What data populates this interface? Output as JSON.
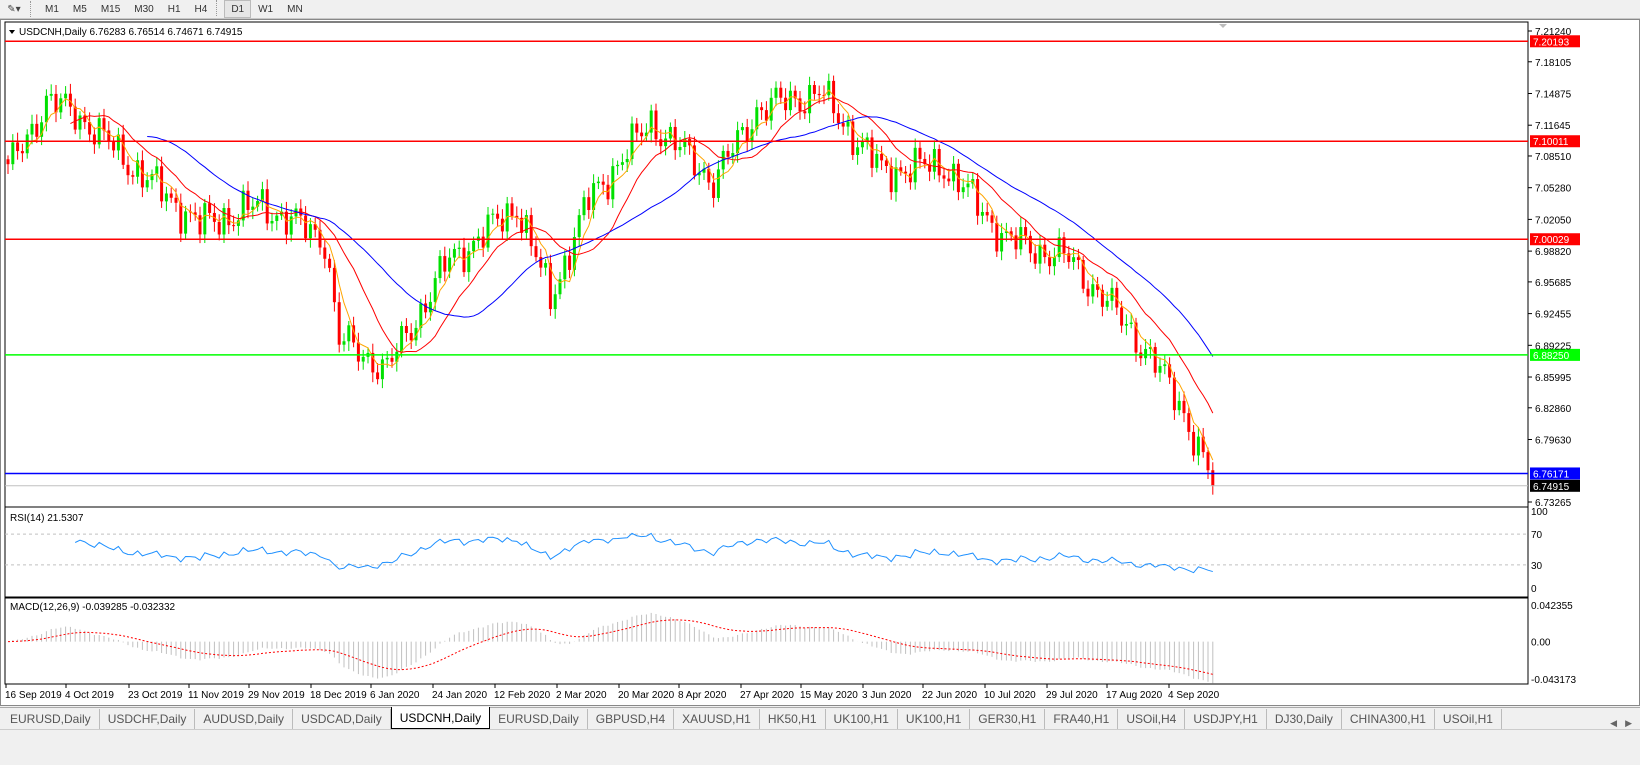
{
  "toolbar": {
    "timeframes": [
      "M1",
      "M5",
      "M15",
      "M30",
      "H1",
      "H4",
      "D1",
      "W1",
      "MN"
    ],
    "active_timeframe": "D1"
  },
  "chart": {
    "header": "USDCNH,Daily  6.76283 6.76514 6.74671 6.74915",
    "rsi_label": "RSI(14) 21.5307",
    "macd_label": "MACD(12,26,9) -0.039285 -0.032332"
  },
  "colors": {
    "bull": "#00e000",
    "bear": "#ff0000",
    "ma_fast": "#ffa500",
    "ma_mid": "#ff0000",
    "ma_slow": "#0000ff",
    "rsi": "#1e90ff",
    "macd_signal": "#ff0000",
    "macd_hist": "#c0c0c0"
  },
  "chart_data": {
    "type": "candlestick",
    "symbol": "USDCNH",
    "timeframe": "Daily",
    "ylim": [
      6.73265,
      7.2124
    ],
    "price_ticks": [
      "7.21240",
      "7.18105",
      "7.14875",
      "7.11645",
      "7.08510",
      "7.05280",
      "7.02050",
      "6.98820",
      "6.95685",
      "6.92455",
      "6.89225",
      "6.85995",
      "6.82860",
      "6.79630",
      "6.73265"
    ],
    "date_ticks": [
      "16 Sep 2019",
      "4 Oct 2019",
      "23 Oct 2019",
      "11 Nov 2019",
      "29 Nov 2019",
      "18 Dec 2019",
      "6 Jan 2020",
      "24 Jan 2020",
      "12 Feb 2020",
      "2 Mar 2020",
      "20 Mar 2020",
      "8 Apr 2020",
      "27 Apr 2020",
      "15 May 2020",
      "3 Jun 2020",
      "22 Jun 2020",
      "10 Jul 2020",
      "29 Jul 2020",
      "17 Aug 2020",
      "4 Sep 2020"
    ],
    "approx_closes": [
      {
        "date": "16 Sep 2019",
        "close": 7.07
      },
      {
        "date": "26 Sep 2019",
        "close": 7.14
      },
      {
        "date": "4 Oct 2019",
        "close": 7.13
      },
      {
        "date": "23 Oct 2019",
        "close": 7.07
      },
      {
        "date": "11 Nov 2019",
        "close": 7.015
      },
      {
        "date": "29 Nov 2019",
        "close": 7.035
      },
      {
        "date": "18 Dec 2019",
        "close": 7.0
      },
      {
        "date": "6 Jan 2020",
        "close": 6.898
      },
      {
        "date": "10 Jan 2020",
        "close": 6.868
      },
      {
        "date": "24 Jan 2020",
        "close": 6.98
      },
      {
        "date": "12 Feb 2020",
        "close": 7.0
      },
      {
        "date": "20 Feb 2020",
        "close": 7.035
      },
      {
        "date": "2 Mar 2020",
        "close": 6.94
      },
      {
        "date": "9 Mar 2020",
        "close": 7.04
      },
      {
        "date": "20 Mar 2020",
        "close": 7.12
      },
      {
        "date": "8 Apr 2020",
        "close": 7.06
      },
      {
        "date": "27 Apr 2020",
        "close": 7.09
      },
      {
        "date": "15 May 2020",
        "close": 7.132
      },
      {
        "date": "27 May 2020",
        "close": 7.15
      },
      {
        "date": "3 Jun 2020",
        "close": 7.07
      },
      {
        "date": "22 Jun 2020",
        "close": 7.076
      },
      {
        "date": "10 Jul 2020",
        "close": 7.0
      },
      {
        "date": "29 Jul 2020",
        "close": 6.98
      },
      {
        "date": "17 Aug 2020",
        "close": 6.908
      },
      {
        "date": "4 Sep 2020",
        "close": 6.836
      },
      {
        "date": "14 Sep 2020",
        "close": 6.749
      }
    ],
    "levels": [
      {
        "value": 7.20193,
        "label": "7.20193",
        "color": "#ff0000"
      },
      {
        "value": 7.10011,
        "label": "7.10011",
        "color": "#ff0000"
      },
      {
        "value": 7.00029,
        "label": "7.00029",
        "color": "#ff0000"
      },
      {
        "value": 6.8825,
        "label": "6.88250",
        "color": "#00ff00"
      },
      {
        "value": 6.76171,
        "label": "6.76171",
        "color": "#0000ff"
      }
    ],
    "current_price": {
      "value": 6.74915,
      "label": "6.74915"
    },
    "rsi": {
      "ylim": [
        0,
        100
      ],
      "ticks": [
        "100",
        "70",
        "30",
        "0"
      ],
      "levels": [
        70,
        30
      ],
      "last": 21.5307
    },
    "macd": {
      "ticks": [
        "0.042355",
        "0.00",
        "-0.043173"
      ],
      "ylim": [
        -0.043173,
        0.042355
      ],
      "main": -0.039285,
      "signal": -0.032332
    }
  },
  "tabs": [
    "EURUSD,Daily",
    "USDCHF,Daily",
    "AUDUSD,Daily",
    "USDCAD,Daily",
    "USDCNH,Daily",
    "EURUSD,Daily",
    "GBPUSD,H4",
    "XAUUSD,H1",
    "HK50,H1",
    "UK100,H1",
    "UK100,H1",
    "GER30,H1",
    "FRA40,H1",
    "USOil,H4",
    "USDJPY,H1",
    "DJ30,Daily",
    "CHINA300,H1",
    "USOil,H1"
  ],
  "active_tab": 4
}
